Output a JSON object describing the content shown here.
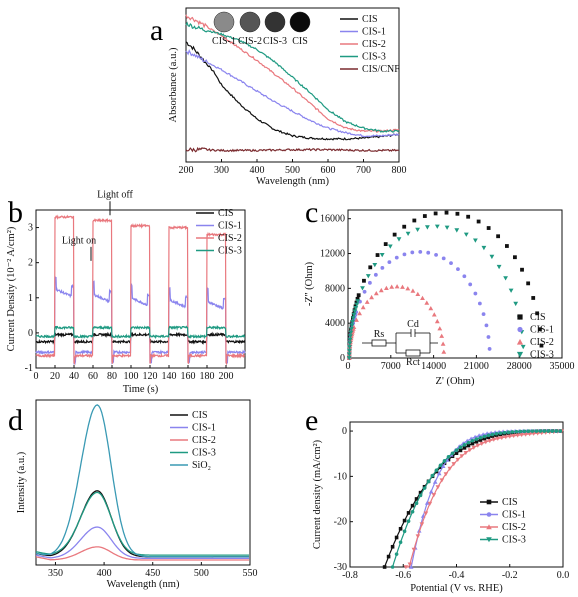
{
  "colors": {
    "CIS": "#111111",
    "CIS-1": "#8a84ee",
    "CIS-2": "#e9787e",
    "CIS-3": "#1f9a82",
    "CIS/CNF": "#7a2a2e",
    "SiO2": "#3a9ab4"
  },
  "chart_data": [
    {
      "panel": "a",
      "type": "line",
      "xlabel": "Wavelength (nm)",
      "ylabel": "Absorbance (a.u.)",
      "xlim": [
        200,
        800
      ],
      "xticks": [
        "200",
        "300",
        "400",
        "500",
        "600",
        "700",
        "800"
      ],
      "legend_position": "top-right",
      "inset_labels": [
        "CIS-1",
        "CIS-2",
        "CIS-3",
        "CIS"
      ],
      "series": [
        {
          "name": "CIS",
          "x": [
            200,
            220,
            250,
            280,
            300,
            350,
            400,
            450,
            500,
            550,
            600,
            650,
            700,
            750,
            800
          ],
          "y": [
            0.78,
            0.74,
            0.66,
            0.58,
            0.5,
            0.38,
            0.28,
            0.21,
            0.17,
            0.155,
            0.15,
            0.15,
            0.155,
            0.165,
            0.18
          ]
        },
        {
          "name": "CIS-1",
          "x": [
            200,
            220,
            250,
            300,
            350,
            400,
            450,
            500,
            550,
            600,
            650,
            700,
            750,
            800
          ],
          "y": [
            0.72,
            0.7,
            0.66,
            0.6,
            0.53,
            0.46,
            0.39,
            0.33,
            0.27,
            0.22,
            0.19,
            0.17,
            0.17,
            0.18
          ]
        },
        {
          "name": "CIS-2",
          "x": [
            200,
            220,
            250,
            300,
            350,
            400,
            450,
            500,
            550,
            600,
            650,
            700,
            750,
            800
          ],
          "y": [
            0.95,
            0.93,
            0.89,
            0.82,
            0.74,
            0.66,
            0.57,
            0.48,
            0.38,
            0.28,
            0.22,
            0.2,
            0.2,
            0.21
          ]
        },
        {
          "name": "CIS-3",
          "x": [
            200,
            220,
            250,
            300,
            350,
            400,
            450,
            500,
            550,
            600,
            650,
            700,
            750,
            800
          ],
          "y": [
            0.9,
            0.88,
            0.86,
            0.83,
            0.79,
            0.73,
            0.65,
            0.55,
            0.45,
            0.34,
            0.26,
            0.22,
            0.2,
            0.2
          ]
        },
        {
          "name": "CIS/CNF",
          "x": [
            200,
            250,
            300,
            400,
            500,
            600,
            700,
            800
          ],
          "y": [
            0.08,
            0.08,
            0.075,
            0.075,
            0.08,
            0.08,
            0.075,
            0.075
          ]
        }
      ]
    },
    {
      "panel": "b",
      "type": "line",
      "xlabel": "Time (s)",
      "ylabel": "Current Density (10⁻² A/cm²)",
      "xlim": [
        0,
        220
      ],
      "ylim": [
        -1,
        3.5
      ],
      "xticks": [
        "0",
        "20",
        "40",
        "60",
        "80",
        "100",
        "120",
        "140",
        "160",
        "180",
        "200"
      ],
      "yticks": [
        "-1",
        "0",
        "1",
        "2",
        "3"
      ],
      "annotations": [
        "Light on",
        "Light off"
      ],
      "legend_position": "top-right",
      "on_intervals": [
        [
          20,
          40
        ],
        [
          60,
          80
        ],
        [
          100,
          120
        ],
        [
          140,
          160
        ],
        [
          180,
          200
        ]
      ],
      "series": [
        {
          "name": "CIS",
          "dark": -0.25,
          "light": -0.05
        },
        {
          "name": "CIS-1",
          "dark": -0.55,
          "light": [
            1.25,
            1.1,
            1.0,
            0.95,
            0.9
          ]
        },
        {
          "name": "CIS-2",
          "dark": -0.65,
          "light": [
            3.3,
            3.2,
            3.05,
            3.0,
            2.8
          ]
        },
        {
          "name": "CIS-3",
          "dark": -0.1,
          "light": 0.15
        }
      ]
    },
    {
      "panel": "c",
      "type": "scatter",
      "xlabel": "Z' (Ohm)",
      "ylabel": "-Z'' (Ohm)",
      "xlim": [
        0,
        35000
      ],
      "ylim": [
        0,
        17000
      ],
      "xticks": [
        "0",
        "7000",
        "14000",
        "21000",
        "28000",
        "35000"
      ],
      "yticks": [
        "0",
        "4000",
        "8000",
        "12000",
        "16000"
      ],
      "legend_position": "bottom-right",
      "circuit_labels": [
        "Rs",
        "Cd",
        "Rct"
      ],
      "series": [
        {
          "name": "CIS",
          "diameter": 31500
        },
        {
          "name": "CIS-1",
          "diameter": 23000
        },
        {
          "name": "CIS-2",
          "diameter": 15500
        },
        {
          "name": "CIS-3",
          "diameter": 28500
        }
      ]
    },
    {
      "panel": "d",
      "type": "line",
      "xlabel": "Wavelength (nm)",
      "ylabel": "Intensity (a.u.)",
      "xlim": [
        330,
        550
      ],
      "xticks": [
        "350",
        "400",
        "450",
        "500",
        "550"
      ],
      "legend_position": "top-right",
      "series": [
        {
          "name": "CIS",
          "peak": 393,
          "height": 0.4,
          "base": 0.05
        },
        {
          "name": "CIS-1",
          "peak": 393,
          "height": 0.19,
          "base": 0.04
        },
        {
          "name": "CIS-2",
          "peak": 393,
          "height": 0.08,
          "base": 0.03
        },
        {
          "name": "CIS-3",
          "peak": 393,
          "height": 0.38,
          "base": 0.06
        },
        {
          "name": "SiO₂",
          "peak": 393,
          "height": 0.92,
          "base": 0.05
        }
      ]
    },
    {
      "panel": "e",
      "type": "line",
      "xlabel": "Potential (V vs. RHE)",
      "ylabel": "Current density (mA/cm²)",
      "xlim": [
        -0.8,
        0.0
      ],
      "ylim": [
        -30,
        2
      ],
      "xticks": [
        "-0.8",
        "-0.6",
        "-0.4",
        "-0.2",
        "0.0"
      ],
      "yticks": [
        "0",
        "-10",
        "-20",
        "-30"
      ],
      "legend_position": "bottom-center",
      "series": [
        {
          "name": "CIS",
          "onset": -0.67
        },
        {
          "name": "CIS-1",
          "onset": -0.57
        },
        {
          "name": "CIS-2",
          "onset": -0.59
        },
        {
          "name": "CIS-3",
          "onset": -0.64
        }
      ]
    }
  ],
  "panel_letters": [
    "a",
    "b",
    "c",
    "d",
    "e"
  ]
}
